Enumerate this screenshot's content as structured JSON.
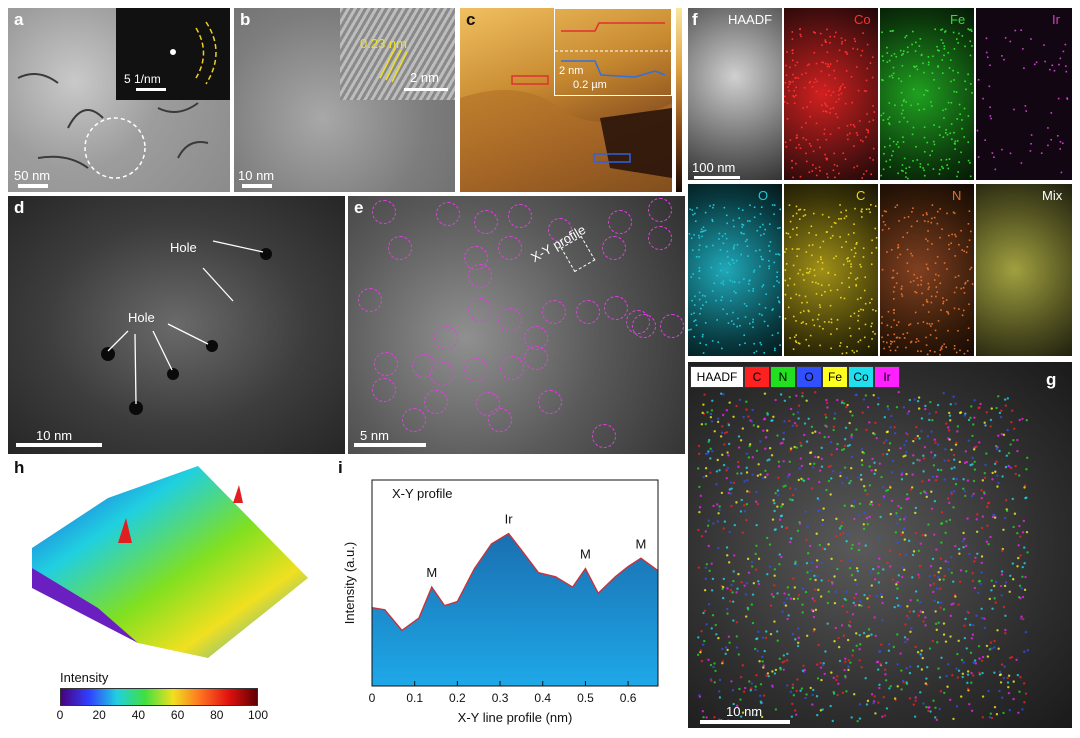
{
  "panels": {
    "a": {
      "label": "a",
      "scale_main": "50 nm",
      "scale_inset": "5 1/nm"
    },
    "b": {
      "label": "b",
      "scale_main": "10 nm",
      "scale_inset": "2 nm",
      "d_spacing": "0.23 nm"
    },
    "c": {
      "label": "c",
      "inset_height": "2 nm",
      "inset_length": "0.2 µm"
    },
    "d": {
      "label": "d",
      "scale": "10 nm",
      "annotation_1": "Hole",
      "annotation_2": "Hole"
    },
    "e": {
      "label": "e",
      "scale": "5 nm",
      "profile_label": "X-Y profile"
    },
    "f": {
      "label": "f",
      "scale": "100 nm",
      "maps": [
        {
          "name": "HAADF",
          "color": "#ffffff"
        },
        {
          "name": "Co",
          "color": "#ff3030"
        },
        {
          "name": "Fe",
          "color": "#30e030"
        },
        {
          "name": "Ir",
          "color": "#d040d0"
        },
        {
          "name": "O",
          "color": "#20c8d8"
        },
        {
          "name": "C",
          "color": "#e8d020"
        },
        {
          "name": "N",
          "color": "#e07030"
        },
        {
          "name": "Mix",
          "color": "#ffffff"
        }
      ]
    },
    "g": {
      "label": "g",
      "scale": "10 nm",
      "legend": [
        {
          "name": "HAADF",
          "color": "#ffffff"
        },
        {
          "name": "C",
          "color": "#ff2020"
        },
        {
          "name": "N",
          "color": "#20e020"
        },
        {
          "name": "O",
          "color": "#3050ff"
        },
        {
          "name": "Fe",
          "color": "#ffff20"
        },
        {
          "name": "Co",
          "color": "#20e0f0"
        },
        {
          "name": "Ir",
          "color": "#ff20ff"
        }
      ]
    },
    "h": {
      "label": "h",
      "colorbar_title": "Intensity",
      "colorbar_ticks": [
        "0",
        "20",
        "40",
        "60",
        "80",
        "100"
      ]
    },
    "i": {
      "label": "i"
    }
  },
  "chart_data": {
    "type": "area",
    "title": "X-Y profile",
    "xlabel": "X-Y line profile (nm)",
    "ylabel": "Intensity (a.u.)",
    "xlim": [
      0,
      0.67
    ],
    "ylim": [
      0,
      1
    ],
    "xticks": [
      "0",
      "0.1",
      "0.2",
      "0.3",
      "0.4",
      "0.5",
      "0.6"
    ],
    "x": [
      0,
      0.03,
      0.07,
      0.11,
      0.14,
      0.17,
      0.2,
      0.24,
      0.28,
      0.32,
      0.35,
      0.39,
      0.43,
      0.47,
      0.5,
      0.53,
      0.57,
      0.6,
      0.63,
      0.67
    ],
    "y": [
      0.38,
      0.37,
      0.27,
      0.33,
      0.48,
      0.39,
      0.41,
      0.57,
      0.69,
      0.74,
      0.66,
      0.55,
      0.53,
      0.48,
      0.57,
      0.45,
      0.53,
      0.58,
      0.62,
      0.56
    ],
    "annotations": [
      {
        "text": "M",
        "x": 0.14,
        "y": 0.48
      },
      {
        "text": "Ir",
        "x": 0.32,
        "y": 0.74
      },
      {
        "text": "M",
        "x": 0.5,
        "y": 0.57
      },
      {
        "text": "M",
        "x": 0.63,
        "y": 0.62
      }
    ],
    "fill_color": "#1d8fd0",
    "line_color": "#c8323c"
  }
}
